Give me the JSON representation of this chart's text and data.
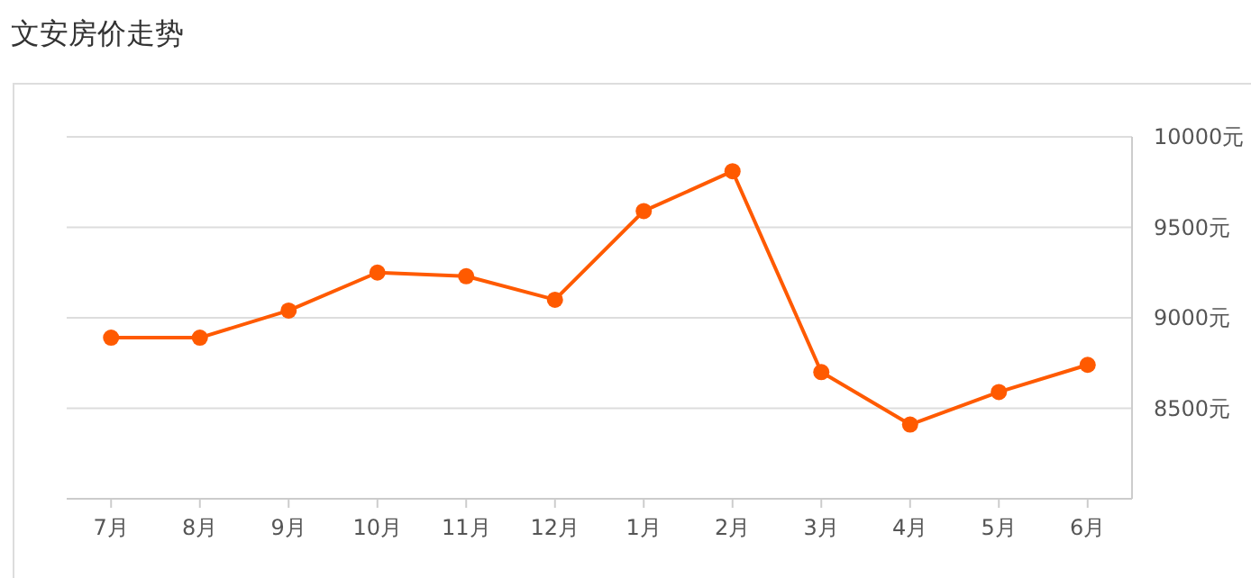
{
  "chart_data": {
    "type": "line",
    "title": "文安房价走势",
    "categories": [
      "7月",
      "8月",
      "9月",
      "10月",
      "11月",
      "12月",
      "1月",
      "2月",
      "3月",
      "4月",
      "5月",
      "6月"
    ],
    "series": [
      {
        "color": "#ff5a00",
        "values": [
          8890,
          8890,
          9040,
          9250,
          9230,
          9100,
          9590,
          9810,
          8700,
          8410,
          8590,
          8740
        ]
      }
    ],
    "ylim": [
      8000,
      10000
    ],
    "yticks": [
      {
        "value": 8500,
        "label": "8500元"
      },
      {
        "value": 9000,
        "label": "9000元"
      },
      {
        "value": 9500,
        "label": "9500元"
      },
      {
        "value": 10000,
        "label": "10000元"
      }
    ],
    "grid": "y",
    "marker": "circle",
    "line_style": "solid"
  }
}
